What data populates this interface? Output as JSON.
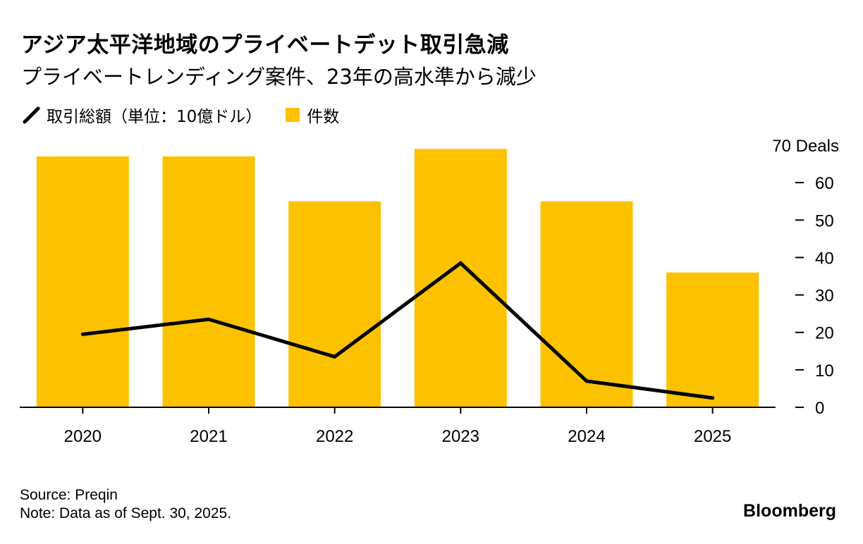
{
  "title": "アジア太平洋地域のプライベートデット取引急減",
  "subtitle": "プライベートレンディング案件、23年の高水準から減少",
  "legend": {
    "line_label": "取引総額（単位：10億ドル）",
    "bar_label": "件数"
  },
  "colors": {
    "bar": "#fcc200",
    "line": "#000000",
    "axis": "#000000",
    "text": "#000000"
  },
  "chart_data": {
    "type": "bar",
    "categories": [
      "2020",
      "2021",
      "2022",
      "2023",
      "2024",
      "2025"
    ],
    "series": [
      {
        "name": "件数",
        "type": "bar",
        "axis": "right",
        "values": [
          67,
          67,
          55,
          69,
          55,
          36
        ]
      },
      {
        "name": "取引総額（単位：10億ドル）",
        "type": "line",
        "axis": "right",
        "values": [
          19.5,
          23.5,
          13.5,
          38.5,
          7,
          2.5
        ]
      }
    ],
    "y_axis": {
      "position": "right",
      "ylim": [
        0,
        70
      ],
      "ticks": [
        0,
        10,
        20,
        30,
        40,
        50,
        60,
        70
      ],
      "top_label": "70 Deals"
    },
    "grid": false
  },
  "footer": {
    "source": "Source: Preqin",
    "note": "Note: Data as of Sept. 30, 2025."
  },
  "brand": "Bloomberg"
}
